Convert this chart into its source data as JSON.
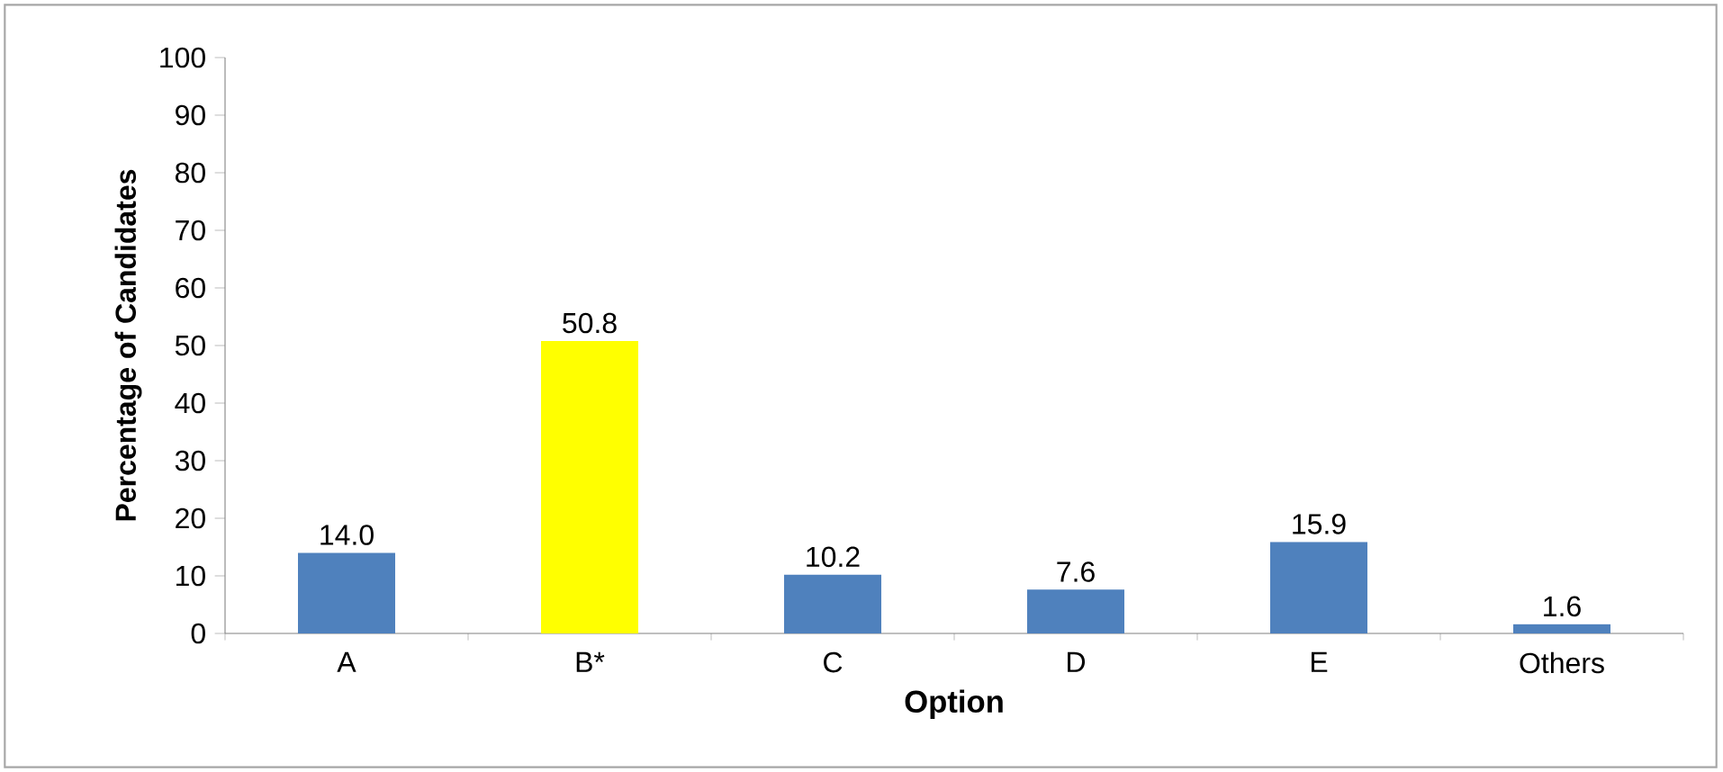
{
  "chart_data": {
    "type": "bar",
    "xlabel": "Option",
    "ylabel": "Percentage of Candidates",
    "categories": [
      "A",
      "B*",
      "C",
      "D",
      "E",
      "Others"
    ],
    "values": [
      14.0,
      50.8,
      10.2,
      7.6,
      15.9,
      1.6
    ],
    "value_labels": [
      "14.0",
      "50.8",
      "10.2",
      "7.6",
      "15.9",
      "1.6"
    ],
    "colors": [
      "#4f81bd",
      "#ffff00",
      "#4f81bd",
      "#4f81bd",
      "#4f81bd",
      "#4f81bd"
    ],
    "ylim": [
      0,
      100
    ],
    "yticks": [
      0,
      10,
      20,
      30,
      40,
      50,
      60,
      70,
      80,
      90,
      100
    ]
  }
}
